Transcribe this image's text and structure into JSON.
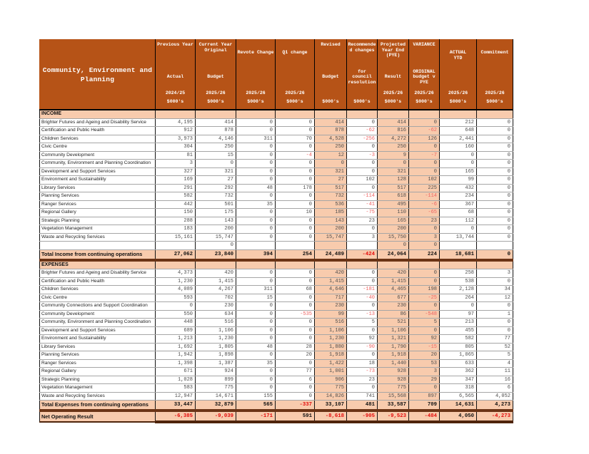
{
  "table": {
    "title": "Community, Environment and\nPlanning",
    "unit_note": "$000's",
    "colors": {
      "header_bg": "#b65317",
      "highlight": "#f8cbad",
      "separator_band": "#6b3416",
      "negative": "#e40c0c"
    },
    "columns": [
      {
        "top": "Previous Year",
        "mid": "Actual",
        "year": "2024/25",
        "unit": "$000's",
        "pos": "top"
      },
      {
        "top": "Current Year\nOriginal",
        "mid": "Budget",
        "year": "2025/26",
        "unit": "$000's",
        "pos": "top"
      },
      {
        "top": "Revote Change",
        "mid": "",
        "year": "2025/26",
        "unit": "$000's",
        "pos": "upper"
      },
      {
        "top": "Q1 change",
        "mid": "",
        "year": "2025/26",
        "unit": "$000's",
        "pos": "upper"
      },
      {
        "top": "Revised",
        "mid": "Budget",
        "year": "",
        "unit": "$000's",
        "pos": "top"
      },
      {
        "top": "Recommende\nd changes",
        "mid": "for\ncouncil\nresolution",
        "year": "",
        "unit": "$000's",
        "pos": "top"
      },
      {
        "top": "Projected\nYear End\n(PYE)",
        "mid": "Result",
        "year": "2025/26",
        "unit": "$000's",
        "pos": "top"
      },
      {
        "top": "VARIANCE",
        "mid": "ORIGINAL\nbudget v\nPYE",
        "year": "2025/26",
        "unit": "$000's",
        "pos": "top"
      },
      {
        "top": "ACTUAL\nYTD",
        "mid": "",
        "year": "2025/26",
        "unit": "$000's",
        "pos": "upper"
      },
      {
        "top": "Commitment",
        "mid": "",
        "year": "2025/26",
        "unit": "$000's",
        "pos": "upper"
      }
    ],
    "rows": [
      {
        "type": "section",
        "label": "INCOME",
        "cells": [
          "",
          "",
          "",
          "",
          "",
          "",
          "",
          "",
          "",
          ""
        ]
      },
      {
        "type": "data",
        "label": "Brighter Futures and Ageing and Disability Service",
        "cells": [
          "4,195",
          "414",
          "0",
          "0",
          "414",
          "0",
          "414",
          "0",
          "212",
          "0"
        ]
      },
      {
        "type": "data",
        "label": "Certification and Public Health",
        "cells": [
          "912",
          "878",
          "0",
          "0",
          "878",
          "-62",
          "816",
          "-62",
          "648",
          "0"
        ]
      },
      {
        "type": "data",
        "label": "Children Services",
        "cells": [
          "3,973",
          "4,146",
          "311",
          "70",
          "4,528",
          "-256",
          "4,272",
          "126",
          "2,441",
          "0"
        ]
      },
      {
        "type": "data",
        "label": "Civic Centre",
        "cells": [
          "304",
          "250",
          "0",
          "0",
          "250",
          "0",
          "250",
          "0",
          "160",
          "0"
        ]
      },
      {
        "type": "data",
        "label": "Community Development",
        "cells": [
          "81",
          "15",
          "0",
          "-4",
          "12",
          "-3",
          "9",
          "-7",
          "0",
          "0"
        ]
      },
      {
        "type": "data",
        "label": "Community, Environment and Planning Coordination",
        "cells": [
          "3",
          "0",
          "0",
          "0",
          "0",
          "0",
          "0",
          "0",
          "0",
          "0"
        ]
      },
      {
        "type": "data",
        "label": "Development and Support Services",
        "cells": [
          "327",
          "321",
          "0",
          "0",
          "321",
          "0",
          "321",
          "0",
          "165",
          "0"
        ]
      },
      {
        "type": "data",
        "label": "Environment and Sustainability",
        "cells": [
          "169",
          "27",
          "0",
          "0",
          "27",
          "102",
          "128",
          "102",
          "99",
          "0"
        ]
      },
      {
        "type": "data",
        "label": "Library Services",
        "cells": [
          "291",
          "292",
          "48",
          "178",
          "517",
          "0",
          "517",
          "225",
          "432",
          "0"
        ]
      },
      {
        "type": "data",
        "label": "Planning Services",
        "cells": [
          "582",
          "732",
          "0",
          "0",
          "732",
          "-114",
          "618",
          "-114",
          "234",
          "0"
        ]
      },
      {
        "type": "data",
        "label": "Ranger Services",
        "cells": [
          "442",
          "501",
          "35",
          "0",
          "536",
          "-41",
          "495",
          "-6",
          "367",
          "0"
        ]
      },
      {
        "type": "data",
        "label": "Regional Gallery",
        "cells": [
          "150",
          "175",
          "0",
          "10",
          "185",
          "-75",
          "110",
          "-65",
          "68",
          "0"
        ]
      },
      {
        "type": "data",
        "label": "Strategic Planning",
        "cells": [
          "288",
          "143",
          "0",
          "0",
          "143",
          "23",
          "165",
          "23",
          "112",
          "0"
        ]
      },
      {
        "type": "data",
        "label": "Vegetation Management",
        "cells": [
          "183",
          "200",
          "0",
          "0",
          "200",
          "0",
          "200",
          "0",
          "0",
          "0"
        ]
      },
      {
        "type": "data",
        "label": "Waste and Recycling Services",
        "cells": [
          "15,161",
          "15,747",
          "0",
          "0",
          "15,747",
          "3",
          "15,750",
          "3",
          "13,744",
          "0"
        ]
      },
      {
        "type": "blank",
        "label": "",
        "cells": [
          "",
          "0",
          "",
          "",
          "",
          "",
          "0",
          "0",
          "",
          ""
        ]
      },
      {
        "type": "total",
        "label": "Total Income from continuing operations",
        "cells": [
          "27,062",
          "23,840",
          "394",
          "254",
          "24,489",
          "-424",
          "24,064",
          "224",
          "18,681",
          "0"
        ]
      },
      {
        "type": "section",
        "label": "EXPENSES",
        "cells": [
          "",
          "",
          "",
          "",
          "",
          "",
          "",
          "",
          "",
          ""
        ]
      },
      {
        "type": "data",
        "label": "Brighter Futures and Ageing and Disability Service",
        "cells": [
          "4,373",
          "420",
          "0",
          "0",
          "420",
          "0",
          "420",
          "0",
          "258",
          "3"
        ]
      },
      {
        "type": "data",
        "label": "Certification and Public Health",
        "cells": [
          "1,230",
          "1,415",
          "0",
          "0",
          "1,415",
          "0",
          "1,415",
          "0",
          "538",
          "0"
        ]
      },
      {
        "type": "data",
        "label": "Children Services",
        "cells": [
          "4,089",
          "4,267",
          "311",
          "68",
          "4,646",
          "-181",
          "4,465",
          "198",
          "2,128",
          "34"
        ]
      },
      {
        "type": "data",
        "label": "Civic Centre",
        "cells": [
          "593",
          "702",
          "15",
          "0",
          "717",
          "-40",
          "677",
          "-25",
          "264",
          "12"
        ]
      },
      {
        "type": "data",
        "label": "Community Connections and Support Coordination",
        "cells": [
          "0",
          "230",
          "0",
          "0",
          "230",
          "0",
          "230",
          "0",
          "0",
          "0"
        ]
      },
      {
        "type": "data",
        "label": "Community Development",
        "cells": [
          "550",
          "634",
          "0",
          "-535",
          "99",
          "-13",
          "86",
          "-548",
          "97",
          "1"
        ]
      },
      {
        "type": "data",
        "label": "Community, Environment and Planning Coordination",
        "cells": [
          "448",
          "516",
          "0",
          "0",
          "516",
          "5",
          "521",
          "5",
          "213",
          "0"
        ]
      },
      {
        "type": "data",
        "label": "Development and Support Services",
        "cells": [
          "689",
          "1,106",
          "0",
          "0",
          "1,106",
          "0",
          "1,106",
          "0",
          "455",
          "0"
        ]
      },
      {
        "type": "data",
        "label": "Environment and Sustainability",
        "cells": [
          "1,213",
          "1,230",
          "0",
          "0",
          "1,230",
          "92",
          "1,321",
          "92",
          "582",
          "77"
        ]
      },
      {
        "type": "data",
        "label": "Library Services",
        "cells": [
          "1,692",
          "1,805",
          "48",
          "28",
          "1,880",
          "-90",
          "1,790",
          "-15",
          "805",
          "52"
        ]
      },
      {
        "type": "data",
        "label": "Planning Services",
        "cells": [
          "1,942",
          "1,898",
          "0",
          "20",
          "1,918",
          "0",
          "1,918",
          "20",
          "1,065",
          "5"
        ]
      },
      {
        "type": "data",
        "label": "Ranger Services",
        "cells": [
          "1,398",
          "1,387",
          "35",
          "0",
          "1,422",
          "18",
          "1,440",
          "53",
          "633",
          "4"
        ]
      },
      {
        "type": "data",
        "label": "Regional Gallery",
        "cells": [
          "671",
          "924",
          "0",
          "77",
          "1,001",
          "-73",
          "928",
          "3",
          "362",
          "11"
        ]
      },
      {
        "type": "data",
        "label": "Strategic Planning",
        "cells": [
          "1,028",
          "899",
          "0",
          "6",
          "906",
          "23",
          "928",
          "29",
          "347",
          "16"
        ]
      },
      {
        "type": "data",
        "label": "Vegetation Management",
        "cells": [
          "583",
          "775",
          "0",
          "0",
          "775",
          "0",
          "775",
          "0",
          "318",
          "6"
        ]
      },
      {
        "type": "data",
        "label": "Waste and Recycling Services",
        "cells": [
          "12,947",
          "14,671",
          "155",
          "0",
          "14,826",
          "741",
          "15,568",
          "897",
          "6,565",
          "4,052"
        ]
      },
      {
        "type": "total",
        "label": "Total Expenses from continuing operations",
        "cells": [
          "33,447",
          "32,879",
          "565",
          "-337",
          "33,107",
          "481",
          "33,587",
          "709",
          "14,631",
          "4,273"
        ]
      },
      {
        "type": "net",
        "label": "Net Operating Result",
        "cells": [
          "-6,385",
          "-9,039",
          "-171",
          "591",
          "-8,618",
          "-905",
          "-9,523",
          "-484",
          "4,050",
          "-4,273"
        ]
      }
    ]
  }
}
